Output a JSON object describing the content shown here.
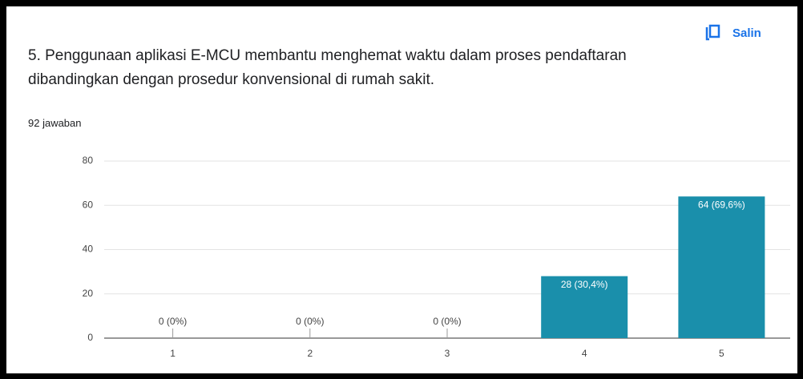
{
  "copy_button": "Salin",
  "chart_data": {
    "type": "bar",
    "title": "5. Penggunaan aplikasi E-MCU membantu menghemat waktu dalam proses pendaftaran dibandingkan dengan prosedur konvensional di rumah sakit.",
    "subtitle": "92 jawaban",
    "categories": [
      "1",
      "2",
      "3",
      "4",
      "5"
    ],
    "values": [
      0,
      0,
      0,
      28,
      64
    ],
    "value_labels": [
      "0 (0%)",
      "0 (0%)",
      "0 (0%)",
      "28 (30,4%)",
      "64 (69,6%)"
    ],
    "color": "#1a8fab",
    "ylim": [
      0,
      80
    ],
    "yticks": [
      0,
      20,
      40,
      60,
      80
    ],
    "grid": true
  }
}
